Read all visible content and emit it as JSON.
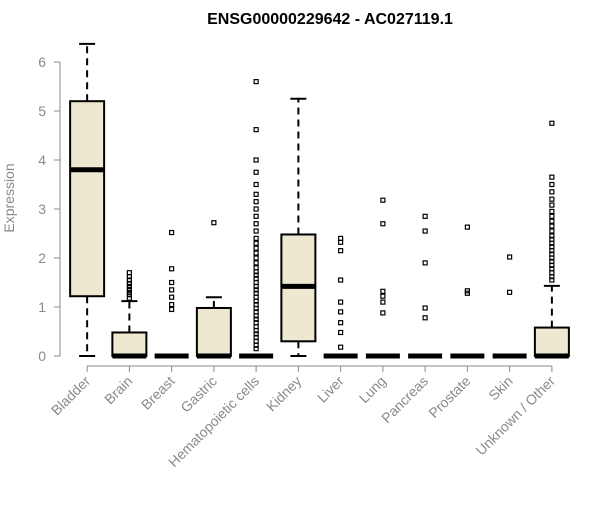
{
  "chart_data": {
    "type": "box",
    "title": "ENSG00000229642 - AC027119.1",
    "ylabel": "Expression",
    "xlabel": "",
    "ylim": [
      0,
      6
    ],
    "yticks": [
      0,
      1,
      2,
      3,
      4,
      5,
      6
    ],
    "grid": false,
    "box_fill": "#ede8cf",
    "categories": [
      "Bladder",
      "Brain",
      "Breast",
      "Gastric",
      "Hematopoietic cells",
      "Kidney",
      "Liver",
      "Lung",
      "Pancreas",
      "Prostate",
      "Skin",
      "Unknown / Other"
    ],
    "boxes": [
      {
        "min": 0.0,
        "q1": 1.22,
        "median": 3.8,
        "q3": 5.2,
        "max": 6.37,
        "outliers": []
      },
      {
        "min": 0.0,
        "q1": 0.0,
        "median": 0.0,
        "q3": 0.48,
        "max": 1.12,
        "outliers": [
          1.18,
          1.25,
          1.3,
          1.36,
          1.42,
          1.48,
          1.55,
          1.62,
          1.7
        ]
      },
      {
        "min": 0.0,
        "q1": 0.0,
        "median": 0.0,
        "q3": 0.0,
        "max": 0.0,
        "outliers": [
          0.95,
          1.05,
          1.2,
          1.35,
          1.5,
          1.78,
          2.52
        ]
      },
      {
        "min": 0.0,
        "q1": 0.0,
        "median": 0.0,
        "q3": 0.98,
        "max": 1.2,
        "outliers": [
          2.72
        ]
      },
      {
        "min": 0.0,
        "q1": 0.0,
        "median": 0.0,
        "q3": 0.0,
        "max": 0.0,
        "outliers": [
          0.15,
          0.22,
          0.3,
          0.38,
          0.45,
          0.52,
          0.6,
          0.68,
          0.75,
          0.82,
          0.9,
          0.97,
          1.05,
          1.12,
          1.2,
          1.28,
          1.35,
          1.42,
          1.5,
          1.58,
          1.65,
          1.72,
          1.8,
          1.9,
          2.0,
          2.1,
          2.2,
          2.3,
          2.4,
          2.55,
          2.7,
          2.85,
          3.0,
          3.15,
          3.3,
          3.5,
          3.75,
          4.0,
          4.62,
          5.6
        ]
      },
      {
        "min": 0.0,
        "q1": 0.3,
        "median": 1.42,
        "q3": 2.48,
        "max": 5.25,
        "outliers": []
      },
      {
        "min": 0.0,
        "q1": 0.0,
        "median": 0.0,
        "q3": 0.0,
        "max": 0.0,
        "outliers": [
          0.18,
          0.48,
          0.68,
          0.9,
          1.1,
          1.55,
          2.15,
          2.32,
          2.4
        ]
      },
      {
        "min": 0.0,
        "q1": 0.0,
        "median": 0.0,
        "q3": 0.0,
        "max": 0.0,
        "outliers": [
          0.88,
          1.1,
          1.22,
          1.32,
          2.7,
          3.18
        ]
      },
      {
        "min": 0.0,
        "q1": 0.0,
        "median": 0.0,
        "q3": 0.0,
        "max": 0.0,
        "outliers": [
          0.78,
          0.98,
          1.9,
          2.55,
          2.85
        ]
      },
      {
        "min": 0.0,
        "q1": 0.0,
        "median": 0.0,
        "q3": 0.0,
        "max": 0.0,
        "outliers": [
          1.28,
          1.33,
          2.63
        ]
      },
      {
        "min": 0.0,
        "q1": 0.0,
        "median": 0.0,
        "q3": 0.0,
        "max": 0.0,
        "outliers": [
          1.3,
          2.02
        ]
      },
      {
        "min": 0.0,
        "q1": 0.0,
        "median": 0.0,
        "q3": 0.58,
        "max": 1.43,
        "outliers": [
          1.55,
          1.62,
          1.7,
          1.78,
          1.85,
          1.93,
          2.0,
          2.08,
          2.15,
          2.23,
          2.3,
          2.38,
          2.45,
          2.55,
          2.65,
          2.75,
          2.85,
          2.95,
          3.08,
          3.2,
          3.35,
          3.5,
          3.65,
          4.75
        ]
      }
    ]
  }
}
